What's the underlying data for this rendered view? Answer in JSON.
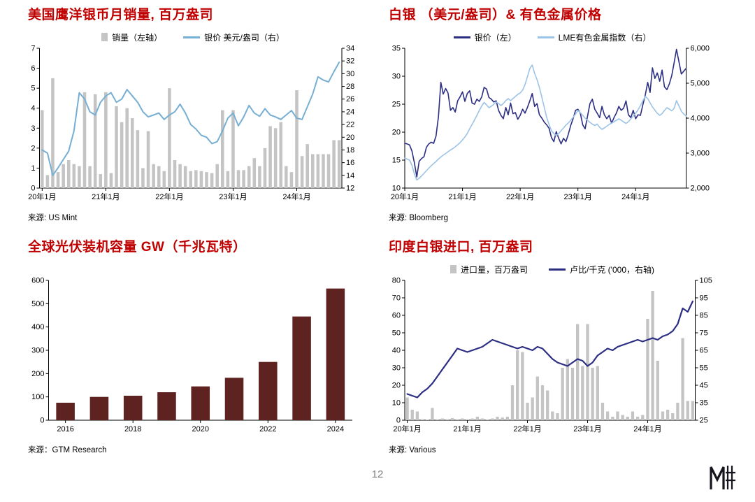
{
  "page": {
    "number": "12"
  },
  "colors": {
    "title_red": "#C00000",
    "gray_bar": "#C4C4C4",
    "sky_blue_line": "#76AFD3",
    "navy_line": "#2C2E83",
    "light_blue_line": "#9DC3E6",
    "maroon_bar": "#5E2320",
    "page_number_gray": "#7F7F7F"
  },
  "chart_data": [
    {
      "type": "bar+line",
      "title": "美国鹰洋银币月销量, 百万盎司",
      "source": "来源: US Mint",
      "bar_frac": 0.6,
      "left_axis": {
        "labels": [
          "0",
          "1",
          "2",
          "3",
          "4",
          "5",
          "6",
          "7"
        ]
      },
      "right_axis": {
        "labels": [
          "12",
          "14",
          "16",
          "18",
          "20",
          "22",
          "24",
          "26",
          "28",
          "30",
          "32",
          "34"
        ]
      },
      "x_axis": {
        "tick_indices": [
          0,
          12,
          24,
          36,
          48
        ],
        "tick_labels": [
          "20年1月",
          "21年1月",
          "22年1月",
          "23年1月",
          "24年1月"
        ]
      },
      "legend": [
        {
          "swatch": "bar",
          "color": "#C4C4C4",
          "label": "销量（左轴）"
        },
        {
          "swatch": "line",
          "color": "#76AFD3",
          "label": "银价 美元/盎司（右）"
        }
      ],
      "series": [
        {
          "name": "销量",
          "type": "bar",
          "axis": "left",
          "color": "#C4C4C4",
          "values": [
            3.9,
            0.65,
            5.5,
            0.8,
            1.2,
            1.4,
            1.2,
            1.1,
            4.8,
            1.1,
            4.7,
            0.7,
            4.8,
            0.75,
            4.1,
            3.3,
            4.0,
            3.5,
            2.9,
            1.0,
            2.85,
            1.2,
            1.1,
            0.85,
            5.0,
            1.4,
            1.2,
            1.1,
            0.85,
            0.9,
            0.85,
            0.8,
            0.75,
            1.2,
            3.9,
            0.85,
            3.9,
            0.9,
            0.9,
            1.1,
            1.5,
            1.1,
            2.0,
            3.1,
            3.0,
            3.3,
            1.1,
            0.8,
            4.9,
            1.6,
            2.2,
            1.7,
            1.7,
            1.7,
            1.7,
            2.4,
            2.4
          ]
        },
        {
          "name": "银价 美元/盎司",
          "type": "line",
          "axis": "right",
          "color": "#76AFD3",
          "width": 2,
          "values": [
            18.0,
            17.5,
            14.0,
            15.2,
            16.5,
            17.8,
            21.0,
            27.0,
            26.0,
            24.0,
            23.5,
            25.5,
            26.5,
            27.0,
            25.5,
            26.0,
            27.5,
            26.5,
            25.5,
            24.0,
            23.2,
            23.5,
            23.8,
            22.8,
            23.5,
            24.0,
            25.2,
            23.8,
            22.0,
            21.3,
            20.3,
            20.0,
            19.0,
            19.3,
            21.0,
            23.0,
            23.8,
            21.8,
            23.2,
            25.0,
            23.8,
            23.3,
            24.5,
            23.5,
            23.2,
            22.8,
            23.5,
            24.2,
            23.0,
            22.8,
            24.8,
            26.8,
            29.5,
            29.0,
            28.7,
            30.3,
            31.8
          ]
        }
      ]
    },
    {
      "type": "line",
      "title": "白银 （美元/盎司）& 有色金属价格",
      "source": "来源: Bloomberg",
      "left_axis": {
        "labels": [
          "10",
          "15",
          "20",
          "25",
          "30",
          "35"
        ]
      },
      "right_axis": {
        "labels": [
          "2,000",
          "3,000",
          "4,000",
          "5,000",
          "6,000"
        ]
      },
      "x_axis": {
        "tick_indices": [
          0,
          24,
          48,
          72,
          96
        ],
        "tick_labels": [
          "20年1月",
          "21年1月",
          "22年1月",
          "23年1月",
          "24年1月"
        ]
      },
      "legend": [
        {
          "swatch": "line",
          "color": "#2C2E83",
          "label": "银价（左）"
        },
        {
          "swatch": "line",
          "color": "#9DC3E6",
          "label": "LME有色金属指数（右）"
        }
      ],
      "series": [
        {
          "name": "银价",
          "type": "line",
          "axis": "left",
          "color": "#2C2E83",
          "width": 1.6,
          "values": [
            18.0,
            17.9,
            17.7,
            16.6,
            14.5,
            12.0,
            14.8,
            15.3,
            15.6,
            17.3,
            17.9,
            18.2,
            18.0,
            19.3,
            22.8,
            28.9,
            26.8,
            27.8,
            27.0,
            23.9,
            24.4,
            23.6,
            25.6,
            26.3,
            27.2,
            25.5,
            26.9,
            27.4,
            25.2,
            25.0,
            25.9,
            25.5,
            26.3,
            28.0,
            27.7,
            26.2,
            25.9,
            25.4,
            25.6,
            23.9,
            23.0,
            22.4,
            24.4,
            23.1,
            25.2,
            23.3,
            23.5,
            22.3,
            23.0,
            24.1,
            23.4,
            24.4,
            25.6,
            26.9,
            24.6,
            25.1,
            23.1,
            22.5,
            21.8,
            21.3,
            20.7,
            19.0,
            18.3,
            20.1,
            18.9,
            17.9,
            18.9,
            18.3,
            19.6,
            21.2,
            22.4,
            23.9,
            24.1,
            23.4,
            21.3,
            20.6,
            22.9,
            25.1,
            25.9,
            24.1,
            23.4,
            22.6,
            24.6,
            23.1,
            22.4,
            23.0,
            21.6,
            22.6,
            23.4,
            24.6,
            23.9,
            24.3,
            25.6,
            23.1,
            22.6,
            23.9,
            22.4,
            23.1,
            23.0,
            24.9,
            26.6,
            28.9,
            27.1,
            31.5,
            29.6,
            30.6,
            29.1,
            31.1,
            28.1,
            27.6,
            28.6,
            30.1,
            32.4,
            34.8,
            32.6,
            30.4,
            30.9,
            31.4
          ]
        },
        {
          "name": "LME有色金属指数",
          "type": "line",
          "axis": "right",
          "color": "#9DC3E6",
          "width": 1.6,
          "values": [
            2850,
            2830,
            2800,
            2650,
            2400,
            2230,
            2280,
            2350,
            2420,
            2500,
            2570,
            2640,
            2700,
            2760,
            2830,
            2890,
            2940,
            2990,
            3040,
            3090,
            3130,
            3180,
            3240,
            3300,
            3380,
            3460,
            3560,
            3700,
            3820,
            3950,
            4080,
            4220,
            4350,
            4450,
            4380,
            4300,
            4340,
            4400,
            4460,
            4420,
            4360,
            4420,
            4500,
            4560,
            4500,
            4560,
            4620,
            4680,
            4720,
            4800,
            4960,
            5180,
            5420,
            5520,
            5280,
            5100,
            4880,
            4600,
            4310,
            4020,
            3820,
            3640,
            3560,
            3500,
            3560,
            3640,
            3720,
            3800,
            3860,
            3940,
            4020,
            4120,
            4220,
            4160,
            4080,
            4000,
            3940,
            3880,
            3830,
            3790,
            3830,
            3740,
            3680,
            3720,
            3770,
            3820,
            3860,
            3900,
            3940,
            3980,
            3940,
            3890,
            3850,
            3900,
            3980,
            4060,
            4140,
            4240,
            4360,
            4500,
            4620,
            4560,
            4440,
            4320,
            4230,
            4140,
            4080,
            4130,
            4220,
            4300,
            4260,
            4210,
            4280,
            4500,
            4350,
            4200,
            4120,
            4060
          ]
        }
      ]
    },
    {
      "type": "bar",
      "title": "全球光伏装机容量 GW（千兆瓦特）",
      "source": "来源：GTM Research",
      "bar_frac": 0.55,
      "left_axis": {
        "labels": [
          "0",
          "100",
          "200",
          "300",
          "400",
          "500",
          "600"
        ]
      },
      "x_axis": {
        "tick_indices": [
          0,
          2,
          4,
          6,
          8
        ],
        "tick_labels": [
          "2016",
          "2018",
          "2020",
          "2022",
          "2024"
        ]
      },
      "categories": [
        "2016",
        "2017",
        "2018",
        "2019",
        "2020",
        "2021",
        "2022",
        "2023",
        "2024"
      ],
      "legend": [],
      "series": [
        {
          "name": "全球光伏装机容量 GW",
          "type": "bar",
          "axis": "left",
          "color": "#5E2320",
          "values": [
            75,
            100,
            105,
            120,
            145,
            182,
            250,
            445,
            565
          ]
        }
      ]
    },
    {
      "type": "bar+line",
      "title": "印度白银进口, 百万盎司",
      "source": "来源: Various",
      "bar_frac": 0.6,
      "left_axis": {
        "labels": [
          "0",
          "10",
          "20",
          "30",
          "40",
          "50",
          "60",
          "70",
          "80"
        ]
      },
      "right_axis": {
        "labels": [
          "25",
          "35",
          "45",
          "55",
          "65",
          "75",
          "85",
          "95",
          "105"
        ]
      },
      "x_axis": {
        "tick_indices": [
          0,
          12,
          24,
          36,
          48
        ],
        "tick_labels": [
          "20年1月",
          "21年1月",
          "22年1月",
          "23年1月",
          "24年1月"
        ]
      },
      "legend": [
        {
          "swatch": "bar",
          "color": "#C4C4C4",
          "label": "进口量，百万盎司"
        },
        {
          "swatch": "line",
          "color": "#2C2E83",
          "label": "卢比/千克 ('000，右轴)"
        }
      ],
      "series": [
        {
          "name": "进口量",
          "type": "bar",
          "axis": "left",
          "color": "#C4C4C4",
          "values": [
            13,
            6,
            5,
            0.5,
            0.3,
            7,
            0.5,
            1,
            0.5,
            1.2,
            0.5,
            1,
            0.5,
            1,
            2,
            1,
            0.4,
            1,
            2,
            1.5,
            2,
            20,
            40,
            39,
            10,
            13,
            25,
            20,
            17,
            5,
            4,
            30,
            35,
            30,
            55,
            31,
            55,
            30,
            31,
            10,
            5,
            2,
            5,
            3,
            2,
            5,
            2,
            3,
            58,
            74,
            34,
            5,
            6,
            4,
            10,
            47,
            11,
            11
          ]
        },
        {
          "name": "卢比/千克",
          "type": "line",
          "axis": "right",
          "color": "#2C2E83",
          "width": 2.2,
          "values": [
            40,
            39,
            38,
            41,
            43,
            46,
            50,
            54,
            58,
            62,
            66,
            65,
            64,
            65,
            66,
            67,
            69,
            71,
            70,
            69,
            68,
            67,
            66,
            67,
            66,
            65,
            67,
            66,
            63,
            60,
            58,
            57,
            56,
            58,
            60,
            59,
            56,
            58,
            62,
            64,
            66,
            65,
            67,
            68,
            69,
            70,
            71,
            70,
            71,
            72,
            71,
            73,
            74,
            76,
            80,
            89,
            87,
            93
          ]
        }
      ]
    }
  ],
  "logo": {
    "icon": "mf-monogram"
  }
}
